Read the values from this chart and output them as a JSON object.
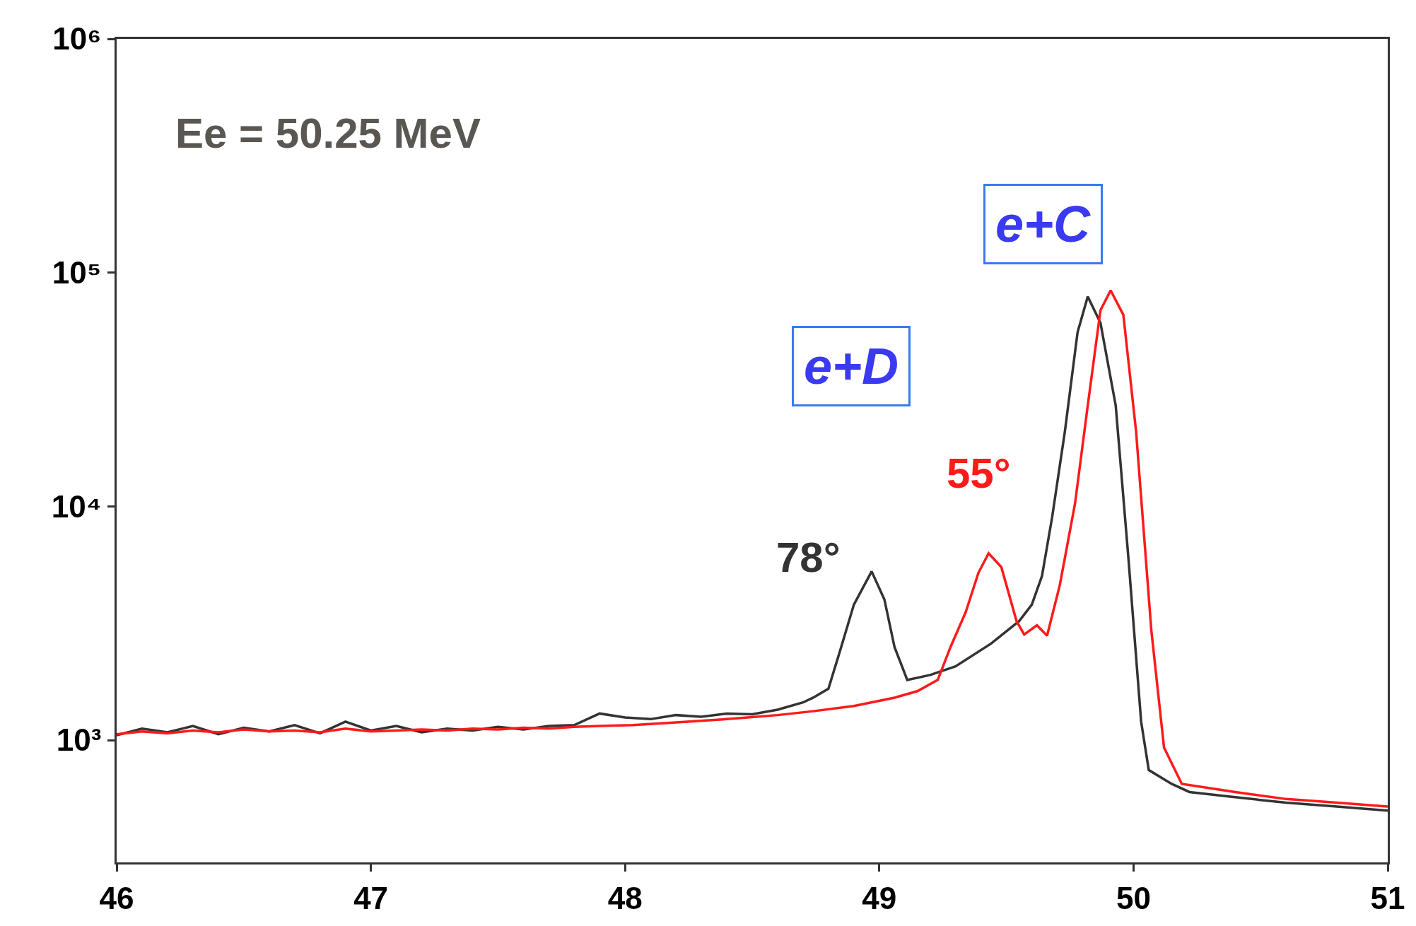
{
  "chart_data": {
    "type": "line",
    "annotations": [
      "Ee = 50.25 MeV",
      "e+D",
      "e+C"
    ],
    "series": [
      {
        "name": "78°",
        "color": "#333333",
        "x": [
          46.0,
          46.1,
          46.2,
          46.3,
          46.4,
          46.5,
          46.6,
          46.7,
          46.8,
          46.9,
          47.0,
          47.1,
          47.2,
          47.3,
          47.4,
          47.5,
          47.6,
          47.7,
          47.8,
          47.9,
          48.0,
          48.1,
          48.2,
          48.3,
          48.4,
          48.5,
          48.6,
          48.7,
          48.74,
          48.8,
          48.85,
          48.9,
          48.97,
          49.02,
          49.06,
          49.11,
          49.2,
          49.3,
          49.44,
          49.55,
          49.6,
          49.64,
          49.68,
          49.73,
          49.78,
          49.82,
          49.87,
          49.93,
          49.98,
          50.03,
          50.06,
          50.15,
          50.22,
          50.4,
          50.6,
          50.8,
          51.0
        ],
        "values": [
          1050,
          1120,
          1080,
          1150,
          1060,
          1130,
          1090,
          1160,
          1070,
          1200,
          1100,
          1150,
          1080,
          1120,
          1100,
          1140,
          1110,
          1150,
          1160,
          1300,
          1250,
          1230,
          1280,
          1260,
          1300,
          1290,
          1350,
          1450,
          1520,
          1660,
          2500,
          3800,
          5270,
          4000,
          2500,
          1810,
          1900,
          2070,
          2590,
          3230,
          3800,
          5040,
          9000,
          20900,
          55600,
          79000,
          61000,
          27000,
          6000,
          1200,
          745,
          650,
          600,
          570,
          540,
          520,
          500
        ]
      },
      {
        "name": "55°",
        "color": "#ff1a1a",
        "x": [
          46.0,
          46.1,
          46.2,
          46.3,
          46.4,
          46.5,
          46.6,
          46.7,
          46.8,
          46.9,
          47.0,
          47.1,
          47.2,
          47.3,
          47.4,
          47.5,
          47.6,
          47.7,
          47.8,
          47.9,
          48.03,
          48.2,
          48.4,
          48.6,
          48.74,
          48.9,
          49.06,
          49.15,
          49.23,
          49.28,
          49.34,
          49.39,
          49.43,
          49.48,
          49.54,
          49.57,
          49.62,
          49.66,
          49.71,
          49.77,
          49.82,
          49.87,
          49.91,
          49.96,
          50.01,
          50.07,
          50.12,
          50.19,
          50.4,
          50.6,
          50.8,
          51.0
        ],
        "values": [
          1060,
          1090,
          1070,
          1100,
          1080,
          1110,
          1090,
          1100,
          1080,
          1120,
          1090,
          1100,
          1110,
          1100,
          1120,
          1110,
          1130,
          1120,
          1140,
          1150,
          1160,
          1190,
          1230,
          1280,
          1330,
          1400,
          1520,
          1620,
          1810,
          2500,
          3530,
          5200,
          6300,
          5500,
          3230,
          2830,
          3100,
          2800,
          4600,
          10300,
          27000,
          69000,
          84000,
          66000,
          21000,
          2960,
          930,
          650,
          600,
          560,
          540,
          520
        ]
      }
    ],
    "xlim": [
      46,
      51
    ],
    "xticks": [
      46,
      47,
      48,
      49,
      50,
      51
    ],
    "ylim": [
      300,
      1000000
    ],
    "yticks": [
      {
        "value": 1000,
        "label": "10³"
      },
      {
        "value": 10000,
        "label": "10⁴"
      },
      {
        "value": 100000,
        "label": "10⁵"
      },
      {
        "value": 1000000,
        "label": "10⁶"
      }
    ],
    "log": "y",
    "legend": false,
    "marker": "none",
    "line_style": "solid"
  }
}
